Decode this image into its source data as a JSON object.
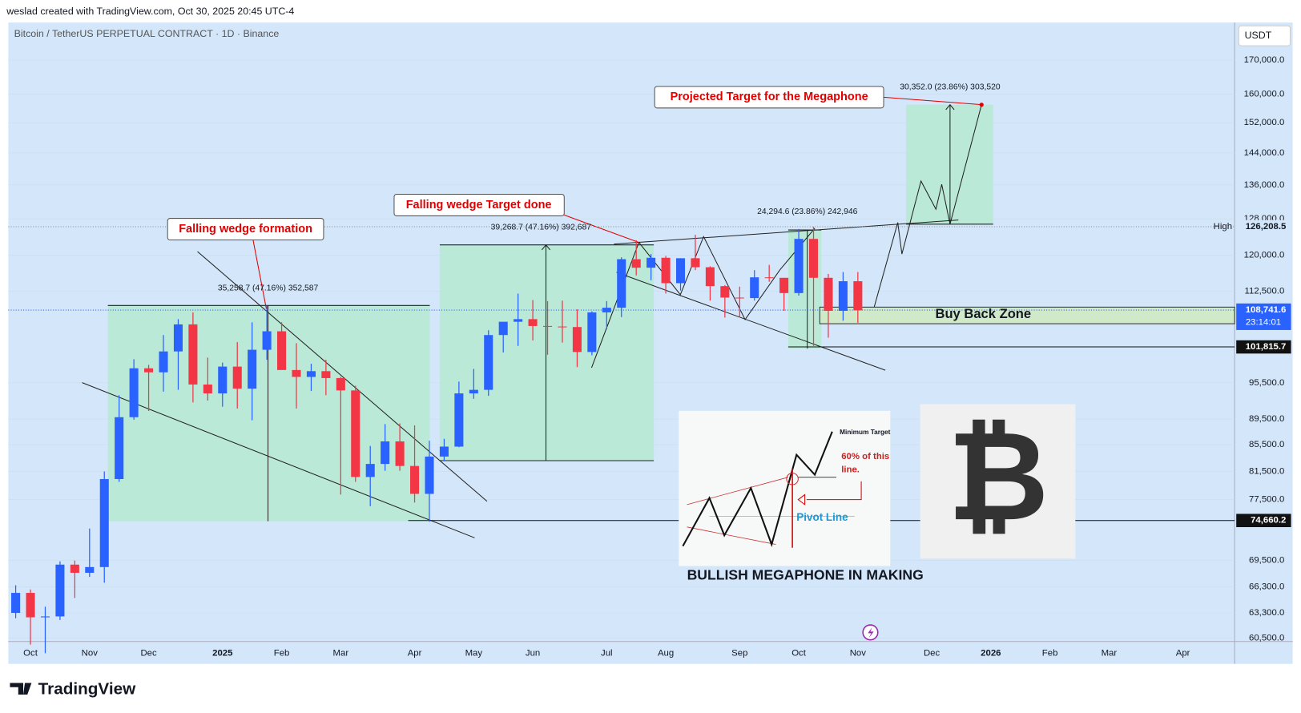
{
  "header": {
    "attribution": "weslad created with TradingView.com, Oct 30, 2025 20:45 UTC-4"
  },
  "footer": {
    "brand": "TradingView"
  },
  "chart_data": {
    "type": "candlestick",
    "title": "Bitcoin / TetherUS PERPETUAL CONTRACT · 1D · Binance",
    "currency": "USDT",
    "log_scale": true,
    "up_color": "#2962ff",
    "down_color": "#f23645",
    "categories": [
      null,
      "Oct",
      null,
      null,
      null,
      "Nov",
      null,
      null,
      null,
      "Dec",
      null,
      null,
      null,
      null,
      "2025",
      null,
      null,
      null,
      "Feb",
      null,
      null,
      null,
      "Mar",
      null,
      null,
      null,
      null,
      "Apr",
      null,
      null,
      null,
      "May",
      null,
      null,
      null,
      "Jun",
      null,
      null,
      null,
      null,
      "Jul",
      null,
      null,
      null,
      "Aug",
      null,
      null,
      null,
      null,
      "Sep",
      null,
      null,
      null,
      "Oct",
      null,
      null,
      null,
      "Nov",
      null,
      null,
      null,
      null,
      "Dec",
      null,
      null,
      null,
      "2026",
      null,
      null,
      null,
      "Feb",
      null,
      null,
      null,
      "Mar",
      null,
      null,
      null,
      null,
      "Apr",
      null,
      null,
      null
    ],
    "open": [
      63300,
      65600,
      62800,
      62900,
      69000,
      68000,
      68700,
      80400,
      89800,
      98000,
      97300,
      101000,
      106000,
      95200,
      93700,
      98300,
      94500,
      101300,
      104700,
      97700,
      96500,
      97500,
      96300,
      94200,
      80700,
      82600,
      86000,
      82300,
      78300,
      83700,
      85200,
      93700,
      94300,
      104000,
      106500,
      107000,
      105700,
      105600,
      105500,
      100900,
      108300,
      109200,
      119100,
      117300,
      119400,
      114100,
      119300,
      117400,
      113500,
      111200,
      111100,
      115300,
      115200,
      112100,
      123500,
      115200,
      108600,
      114500,
      null,
      null,
      null,
      null,
      null,
      null,
      null,
      null,
      null,
      null,
      null,
      null,
      null,
      null,
      null,
      null,
      null,
      null,
      null,
      null,
      null,
      null,
      null,
      null,
      null
    ],
    "high": [
      66500,
      66000,
      64000,
      69400,
      69500,
      73600,
      81500,
      93400,
      99600,
      98600,
      104000,
      107000,
      108300,
      99900,
      99000,
      102700,
      106400,
      109600,
      106400,
      102500,
      98800,
      99500,
      96500,
      95000,
      85300,
      88700,
      88800,
      88500,
      86100,
      86400,
      95700,
      97900,
      104900,
      105800,
      112000,
      110700,
      110500,
      110600,
      108900,
      108500,
      110500,
      119500,
      123200,
      120200,
      119800,
      119300,
      124400,
      117600,
      113700,
      113400,
      116800,
      117900,
      115200,
      125700,
      126200,
      116000,
      116400,
      116400,
      null,
      null,
      null,
      null,
      null,
      null,
      null,
      null,
      null,
      null,
      null,
      null,
      null,
      null,
      null,
      null,
      null,
      null,
      null,
      null,
      null,
      null,
      null,
      null,
      null
    ],
    "low": [
      62700,
      59800,
      58900,
      62500,
      65000,
      67500,
      66800,
      80000,
      89400,
      90800,
      94000,
      94300,
      92200,
      92500,
      91500,
      91200,
      89300,
      99500,
      97800,
      91200,
      94100,
      93400,
      78200,
      80000,
      76600,
      81600,
      81600,
      77100,
      74500,
      83000,
      85100,
      92800,
      93300,
      100800,
      102000,
      103000,
      100400,
      102600,
      98200,
      100300,
      105100,
      107400,
      115700,
      114700,
      112000,
      112600,
      116800,
      110600,
      107300,
      107300,
      110600,
      114400,
      108600,
      111600,
      102000,
      103500,
      106700,
      106300,
      null,
      null,
      null,
      null,
      null,
      null,
      null,
      null,
      null,
      null,
      null,
      null,
      null,
      null,
      null,
      null,
      null,
      null,
      null,
      null,
      null,
      null,
      null,
      null,
      null
    ],
    "close": [
      65600,
      62800,
      62900,
      69000,
      68000,
      68700,
      80400,
      89800,
      98000,
      97300,
      101000,
      106000,
      95200,
      93700,
      98300,
      94500,
      101300,
      104700,
      97700,
      96500,
      97500,
      96300,
      94200,
      80700,
      82600,
      86000,
      82300,
      78300,
      83700,
      85200,
      93700,
      94300,
      104000,
      106500,
      107000,
      105700,
      105600,
      105500,
      100900,
      108300,
      109200,
      119100,
      117300,
      119400,
      114100,
      119300,
      117400,
      113500,
      111200,
      111100,
      115300,
      115200,
      112100,
      123500,
      115200,
      108600,
      114500,
      108700,
      null,
      null,
      null,
      null,
      null,
      null,
      null,
      null,
      null,
      null,
      null,
      null,
      null,
      null,
      null,
      null,
      null,
      null,
      null,
      null,
      null,
      null,
      null,
      null,
      null
    ],
    "ylim": [
      60140,
      181800
    ],
    "yticks": [
      {
        "value": 170000,
        "label": "170,000.0"
      },
      {
        "value": 160000,
        "label": "160,000.0"
      },
      {
        "value": 152000,
        "label": "152,000.0"
      },
      {
        "value": 144000,
        "label": "144,000.0"
      },
      {
        "value": 136000,
        "label": "136,000.0"
      },
      {
        "value": 128000,
        "label": "128,000.0"
      },
      {
        "value": 120000,
        "label": "120,000.0"
      },
      {
        "value": 112500,
        "label": "112,500.0"
      },
      {
        "value": 95500,
        "label": "95,500.0"
      },
      {
        "value": 89500,
        "label": "89,500.0"
      },
      {
        "value": 85500,
        "label": "85,500.0"
      },
      {
        "value": 81500,
        "label": "81,500.0"
      },
      {
        "value": 77500,
        "label": "77,500.0"
      },
      {
        "value": 69500,
        "label": "69,500.0"
      },
      {
        "value": 66300,
        "label": "66,300.0"
      },
      {
        "value": 63300,
        "label": "63,300.0"
      },
      {
        "value": 60500,
        "label": "60,500.0"
      }
    ],
    "levels": [
      {
        "value": 126208.5,
        "label": "126,208.5",
        "tag": "High"
      },
      {
        "value": 108741.6,
        "label": "108,741.6",
        "countdown": "23:14:01"
      },
      {
        "value": 101815.7,
        "label": "101,815.7"
      },
      {
        "value": 74660.2,
        "label": "74,660.2"
      }
    ],
    "annotations": {
      "wedge_formation": "Falling wedge formation",
      "wedge_target": "Falling wedge Target done",
      "projected_target": "Projected Target for the Megaphone",
      "measure_1": "35,258.7 (47.16%) 352,587",
      "measure_2": "39,268.7 (47.16%) 392,687",
      "measure_3": "24,294.6 (23.86%) 242,946",
      "measure_4": "30,352.0 (23.86%) 303,520",
      "buy_back_zone": "Buy Back Zone",
      "megaphone_title": "BULLISH MEGAPHONE IN MAKING"
    }
  },
  "inset": {
    "minimum_target": "Minimum Target",
    "ratio_line_1": "60% of this",
    "ratio_line_2": "line.",
    "pivot_line": "Pivot Line"
  },
  "logo": {
    "symbol": "₿"
  }
}
